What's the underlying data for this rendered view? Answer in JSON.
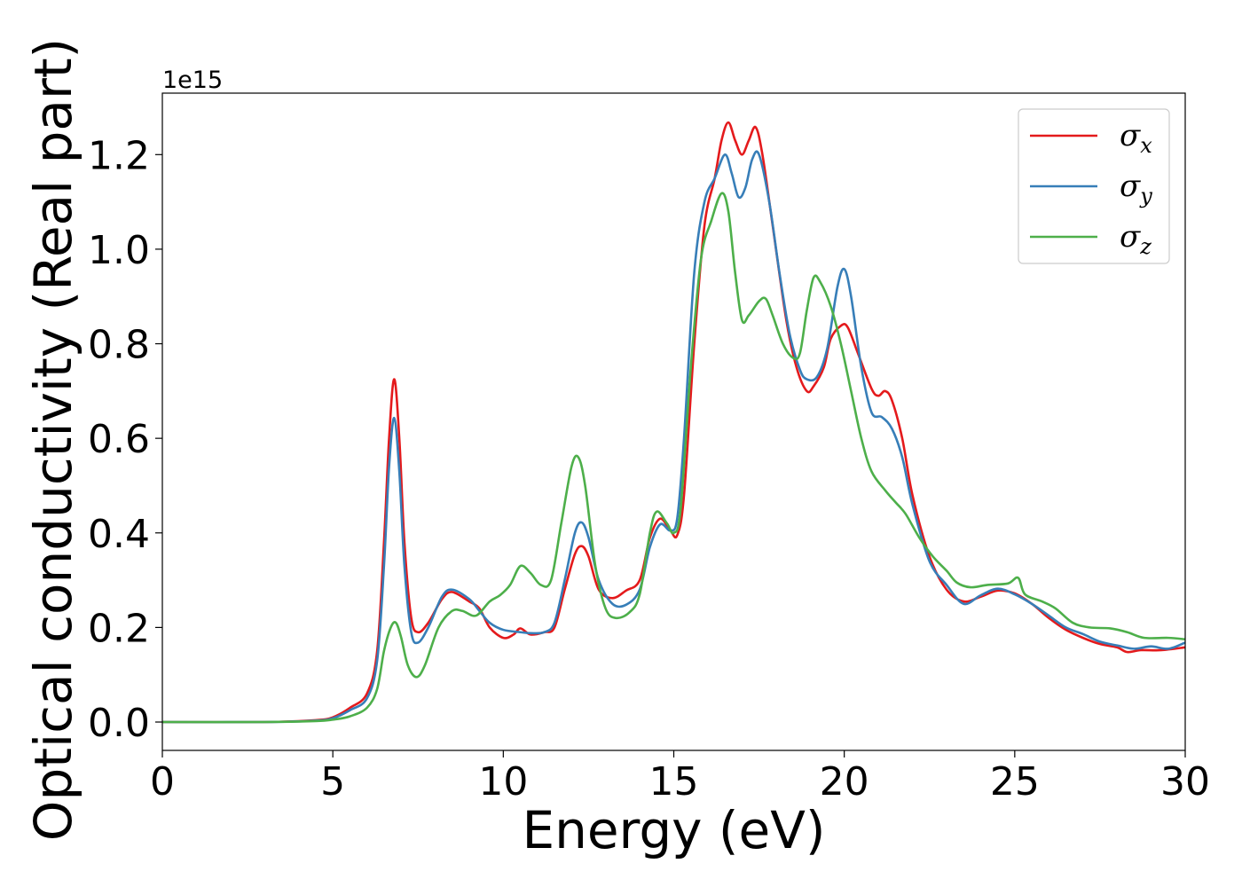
{
  "chart_data": {
    "type": "line",
    "title": "",
    "xlabel": "Energy (eV)",
    "ylabel": "Optical conductivity (Real part)",
    "y_offset_label": "1e15",
    "xlim": [
      0,
      30
    ],
    "ylim": [
      -0.06,
      1.33
    ],
    "xticks": [
      0,
      5,
      10,
      15,
      20,
      25,
      30
    ],
    "xtick_labels": [
      "0",
      "5",
      "10",
      "15",
      "20",
      "25",
      "30"
    ],
    "yticks": [
      0.0,
      0.2,
      0.4,
      0.6,
      0.8,
      1.0,
      1.2
    ],
    "ytick_labels": [
      "0.0",
      "0.2",
      "0.4",
      "0.6",
      "0.8",
      "1.0",
      "1.2"
    ],
    "grid": false,
    "legend_position": "top-right",
    "series": [
      {
        "name": "σ",
        "subscript": "x",
        "color": "#e41a1c",
        "points": [
          [
            0,
            0
          ],
          [
            3,
            0
          ],
          [
            4.5,
            0.004
          ],
          [
            5,
            0.01
          ],
          [
            5.5,
            0.03
          ],
          [
            6,
            0.06
          ],
          [
            6.3,
            0.15
          ],
          [
            6.5,
            0.38
          ],
          [
            6.65,
            0.6
          ],
          [
            6.8,
            0.725
          ],
          [
            6.95,
            0.6
          ],
          [
            7.1,
            0.38
          ],
          [
            7.3,
            0.22
          ],
          [
            7.5,
            0.19
          ],
          [
            7.8,
            0.21
          ],
          [
            8.2,
            0.26
          ],
          [
            8.5,
            0.275
          ],
          [
            9.0,
            0.255
          ],
          [
            9.3,
            0.24
          ],
          [
            9.6,
            0.2
          ],
          [
            10.0,
            0.178
          ],
          [
            10.3,
            0.185
          ],
          [
            10.5,
            0.198
          ],
          [
            10.8,
            0.185
          ],
          [
            11.2,
            0.19
          ],
          [
            11.5,
            0.2
          ],
          [
            11.8,
            0.28
          ],
          [
            12.1,
            0.355
          ],
          [
            12.3,
            0.372
          ],
          [
            12.5,
            0.35
          ],
          [
            12.8,
            0.28
          ],
          [
            13.2,
            0.262
          ],
          [
            13.6,
            0.278
          ],
          [
            14.0,
            0.3
          ],
          [
            14.3,
            0.39
          ],
          [
            14.6,
            0.43
          ],
          [
            14.9,
            0.405
          ],
          [
            15.1,
            0.395
          ],
          [
            15.3,
            0.48
          ],
          [
            15.6,
            0.8
          ],
          [
            15.9,
            1.05
          ],
          [
            16.2,
            1.15
          ],
          [
            16.4,
            1.23
          ],
          [
            16.6,
            1.268
          ],
          [
            16.8,
            1.23
          ],
          [
            17.0,
            1.2
          ],
          [
            17.2,
            1.23
          ],
          [
            17.4,
            1.258
          ],
          [
            17.6,
            1.2
          ],
          [
            17.9,
            1.05
          ],
          [
            18.3,
            0.85
          ],
          [
            18.6,
            0.75
          ],
          [
            18.9,
            0.7
          ],
          [
            19.1,
            0.71
          ],
          [
            19.4,
            0.75
          ],
          [
            19.6,
            0.81
          ],
          [
            19.9,
            0.838
          ],
          [
            20.1,
            0.835
          ],
          [
            20.4,
            0.78
          ],
          [
            20.8,
            0.705
          ],
          [
            21.0,
            0.69
          ],
          [
            21.2,
            0.7
          ],
          [
            21.4,
            0.68
          ],
          [
            21.7,
            0.6
          ],
          [
            22.0,
            0.48
          ],
          [
            22.5,
            0.35
          ],
          [
            23.0,
            0.28
          ],
          [
            23.5,
            0.255
          ],
          [
            24.0,
            0.265
          ],
          [
            24.5,
            0.278
          ],
          [
            25.0,
            0.272
          ],
          [
            25.5,
            0.25
          ],
          [
            26.0,
            0.22
          ],
          [
            26.5,
            0.195
          ],
          [
            27.0,
            0.178
          ],
          [
            27.5,
            0.165
          ],
          [
            28.0,
            0.158
          ],
          [
            28.3,
            0.148
          ],
          [
            28.7,
            0.152
          ],
          [
            29.3,
            0.152
          ],
          [
            30.0,
            0.158
          ]
        ]
      },
      {
        "name": "σ",
        "subscript": "y",
        "color": "#377eb8",
        "points": [
          [
            0,
            0
          ],
          [
            3,
            0
          ],
          [
            4.5,
            0.003
          ],
          [
            5,
            0.008
          ],
          [
            5.5,
            0.025
          ],
          [
            6,
            0.05
          ],
          [
            6.3,
            0.13
          ],
          [
            6.5,
            0.33
          ],
          [
            6.65,
            0.54
          ],
          [
            6.8,
            0.643
          ],
          [
            6.95,
            0.53
          ],
          [
            7.1,
            0.33
          ],
          [
            7.3,
            0.19
          ],
          [
            7.5,
            0.168
          ],
          [
            7.8,
            0.2
          ],
          [
            8.2,
            0.265
          ],
          [
            8.5,
            0.28
          ],
          [
            9.0,
            0.26
          ],
          [
            9.3,
            0.235
          ],
          [
            9.6,
            0.21
          ],
          [
            10.0,
            0.195
          ],
          [
            10.5,
            0.19
          ],
          [
            10.8,
            0.188
          ],
          [
            11.2,
            0.19
          ],
          [
            11.5,
            0.21
          ],
          [
            11.8,
            0.3
          ],
          [
            12.1,
            0.4
          ],
          [
            12.3,
            0.422
          ],
          [
            12.5,
            0.39
          ],
          [
            12.8,
            0.3
          ],
          [
            13.2,
            0.25
          ],
          [
            13.6,
            0.248
          ],
          [
            14.0,
            0.28
          ],
          [
            14.3,
            0.37
          ],
          [
            14.6,
            0.418
          ],
          [
            14.9,
            0.405
          ],
          [
            15.1,
            0.43
          ],
          [
            15.3,
            0.6
          ],
          [
            15.6,
            0.95
          ],
          [
            15.9,
            1.1
          ],
          [
            16.2,
            1.15
          ],
          [
            16.5,
            1.2
          ],
          [
            16.7,
            1.16
          ],
          [
            16.9,
            1.11
          ],
          [
            17.1,
            1.13
          ],
          [
            17.3,
            1.19
          ],
          [
            17.5,
            1.2
          ],
          [
            17.8,
            1.1
          ],
          [
            18.1,
            0.95
          ],
          [
            18.4,
            0.82
          ],
          [
            18.7,
            0.745
          ],
          [
            18.9,
            0.725
          ],
          [
            19.2,
            0.73
          ],
          [
            19.5,
            0.79
          ],
          [
            19.8,
            0.92
          ],
          [
            20.0,
            0.958
          ],
          [
            20.2,
            0.9
          ],
          [
            20.5,
            0.75
          ],
          [
            20.8,
            0.655
          ],
          [
            21.1,
            0.645
          ],
          [
            21.4,
            0.62
          ],
          [
            21.7,
            0.56
          ],
          [
            22.0,
            0.46
          ],
          [
            22.5,
            0.34
          ],
          [
            23.0,
            0.29
          ],
          [
            23.5,
            0.25
          ],
          [
            24.0,
            0.268
          ],
          [
            24.5,
            0.282
          ],
          [
            25.0,
            0.27
          ],
          [
            25.5,
            0.25
          ],
          [
            26.0,
            0.225
          ],
          [
            26.5,
            0.2
          ],
          [
            27.0,
            0.186
          ],
          [
            27.5,
            0.17
          ],
          [
            28.0,
            0.162
          ],
          [
            28.5,
            0.155
          ],
          [
            29.0,
            0.16
          ],
          [
            29.5,
            0.155
          ],
          [
            30.0,
            0.168
          ]
        ]
      },
      {
        "name": "σ",
        "subscript": "z",
        "color": "#4daf4a",
        "points": [
          [
            0,
            0
          ],
          [
            3,
            0
          ],
          [
            4.5,
            0.002
          ],
          [
            5,
            0.005
          ],
          [
            5.5,
            0.012
          ],
          [
            6,
            0.03
          ],
          [
            6.3,
            0.07
          ],
          [
            6.5,
            0.15
          ],
          [
            6.7,
            0.2
          ],
          [
            6.85,
            0.21
          ],
          [
            7.0,
            0.18
          ],
          [
            7.2,
            0.12
          ],
          [
            7.45,
            0.095
          ],
          [
            7.7,
            0.12
          ],
          [
            8.1,
            0.2
          ],
          [
            8.5,
            0.235
          ],
          [
            8.8,
            0.235
          ],
          [
            9.2,
            0.225
          ],
          [
            9.6,
            0.255
          ],
          [
            9.9,
            0.268
          ],
          [
            10.2,
            0.29
          ],
          [
            10.5,
            0.33
          ],
          [
            10.8,
            0.315
          ],
          [
            11.1,
            0.29
          ],
          [
            11.4,
            0.3
          ],
          [
            11.7,
            0.42
          ],
          [
            12.0,
            0.54
          ],
          [
            12.2,
            0.56
          ],
          [
            12.4,
            0.5
          ],
          [
            12.7,
            0.33
          ],
          [
            13.0,
            0.24
          ],
          [
            13.3,
            0.22
          ],
          [
            13.7,
            0.232
          ],
          [
            14.0,
            0.27
          ],
          [
            14.3,
            0.4
          ],
          [
            14.5,
            0.445
          ],
          [
            14.8,
            0.42
          ],
          [
            15.0,
            0.4
          ],
          [
            15.2,
            0.45
          ],
          [
            15.5,
            0.75
          ],
          [
            15.8,
            0.98
          ],
          [
            16.1,
            1.06
          ],
          [
            16.4,
            1.118
          ],
          [
            16.6,
            1.08
          ],
          [
            16.8,
            0.95
          ],
          [
            17.0,
            0.85
          ],
          [
            17.2,
            0.86
          ],
          [
            17.5,
            0.89
          ],
          [
            17.7,
            0.895
          ],
          [
            17.9,
            0.86
          ],
          [
            18.2,
            0.8
          ],
          [
            18.5,
            0.77
          ],
          [
            18.7,
            0.78
          ],
          [
            18.9,
            0.87
          ],
          [
            19.1,
            0.94
          ],
          [
            19.3,
            0.93
          ],
          [
            19.6,
            0.88
          ],
          [
            19.9,
            0.8
          ],
          [
            20.2,
            0.7
          ],
          [
            20.5,
            0.6
          ],
          [
            20.8,
            0.53
          ],
          [
            21.2,
            0.49
          ],
          [
            21.5,
            0.465
          ],
          [
            21.8,
            0.44
          ],
          [
            22.2,
            0.39
          ],
          [
            22.6,
            0.35
          ],
          [
            23.0,
            0.32
          ],
          [
            23.3,
            0.295
          ],
          [
            23.7,
            0.285
          ],
          [
            24.2,
            0.29
          ],
          [
            24.8,
            0.293
          ],
          [
            25.1,
            0.305
          ],
          [
            25.3,
            0.27
          ],
          [
            25.8,
            0.255
          ],
          [
            26.2,
            0.24
          ],
          [
            26.7,
            0.21
          ],
          [
            27.2,
            0.2
          ],
          [
            27.8,
            0.198
          ],
          [
            28.3,
            0.19
          ],
          [
            28.8,
            0.178
          ],
          [
            29.5,
            0.178
          ],
          [
            30.0,
            0.175
          ]
        ]
      }
    ]
  }
}
